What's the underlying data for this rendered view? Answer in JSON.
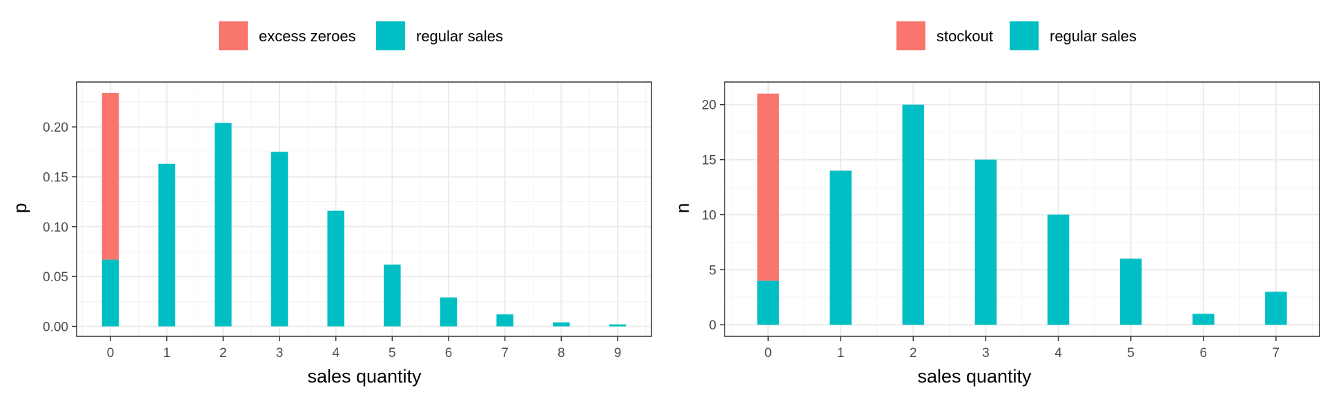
{
  "chart_data": [
    {
      "type": "bar",
      "stacked": true,
      "categories": [
        "0",
        "1",
        "2",
        "3",
        "4",
        "5",
        "6",
        "7",
        "8",
        "9"
      ],
      "series": [
        {
          "name": "excess zeroes",
          "color": "#F8766D",
          "values": [
            0.167,
            0,
            0,
            0,
            0,
            0,
            0,
            0,
            0,
            0
          ]
        },
        {
          "name": "regular sales",
          "color": "#00BFC4",
          "values": [
            0.067,
            0.163,
            0.204,
            0.175,
            0.116,
            0.062,
            0.029,
            0.012,
            0.004,
            0.002
          ]
        }
      ],
      "xlabel": "sales quantity",
      "ylabel": "p",
      "ylim": [
        -0.01,
        0.245
      ],
      "yticks": [
        0.0,
        0.05,
        0.1,
        0.15,
        0.2
      ],
      "ytick_labels": [
        "0.00",
        "0.05",
        "0.10",
        "0.15",
        "0.20"
      ],
      "legend_position": "top",
      "grid": true
    },
    {
      "type": "bar",
      "stacked": true,
      "categories": [
        "0",
        "1",
        "2",
        "3",
        "4",
        "5",
        "6",
        "7"
      ],
      "series": [
        {
          "name": "stockout",
          "color": "#F8766D",
          "values": [
            17,
            0,
            0,
            0,
            0,
            0,
            0,
            0
          ]
        },
        {
          "name": "regular sales",
          "color": "#00BFC4",
          "values": [
            4,
            14,
            20,
            15,
            10,
            6,
            1,
            3
          ]
        }
      ],
      "xlabel": "sales quantity",
      "ylabel": "n",
      "ylim": [
        -1.05,
        22.05
      ],
      "yticks": [
        0,
        5,
        10,
        15,
        20
      ],
      "ytick_labels": [
        "0",
        "5",
        "10",
        "15",
        "20"
      ],
      "legend_position": "top",
      "grid": true
    }
  ]
}
